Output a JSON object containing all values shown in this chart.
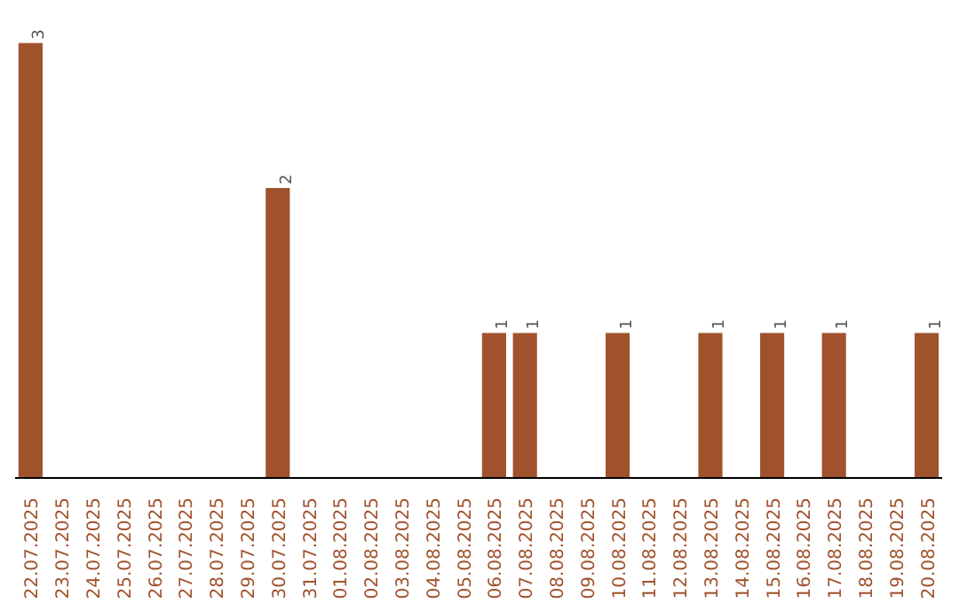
{
  "chart_data": {
    "type": "bar",
    "categories": [
      "22.07.2025",
      "23.07.2025",
      "24.07.2025",
      "25.07.2025",
      "26.07.2025",
      "27.07.2025",
      "28.07.2025",
      "29.07.2025",
      "30.07.2025",
      "31.07.2025",
      "01.08.2025",
      "02.08.2025",
      "03.08.2025",
      "04.08.2025",
      "05.08.2025",
      "06.08.2025",
      "07.08.2025",
      "08.08.2025",
      "09.08.2025",
      "10.08.2025",
      "11.08.2025",
      "12.08.2025",
      "13.08.2025",
      "14.08.2025",
      "15.08.2025",
      "16.08.2025",
      "17.08.2025",
      "18.08.2025",
      "19.08.2025",
      "20.08.2025"
    ],
    "values": [
      3,
      0,
      0,
      0,
      0,
      0,
      0,
      0,
      2,
      0,
      0,
      0,
      0,
      0,
      0,
      1,
      1,
      0,
      0,
      1,
      0,
      0,
      1,
      0,
      1,
      0,
      1,
      0,
      0,
      1
    ],
    "value_labels": [
      "3",
      null,
      null,
      null,
      null,
      null,
      null,
      null,
      "2",
      null,
      null,
      null,
      null,
      null,
      null,
      "1",
      "1",
      null,
      null,
      "1",
      null,
      null,
      "1",
      null,
      "1",
      null,
      "1",
      null,
      null,
      "1"
    ],
    "color": "#a0522d",
    "grid": false,
    "tick_labels": "x"
  }
}
